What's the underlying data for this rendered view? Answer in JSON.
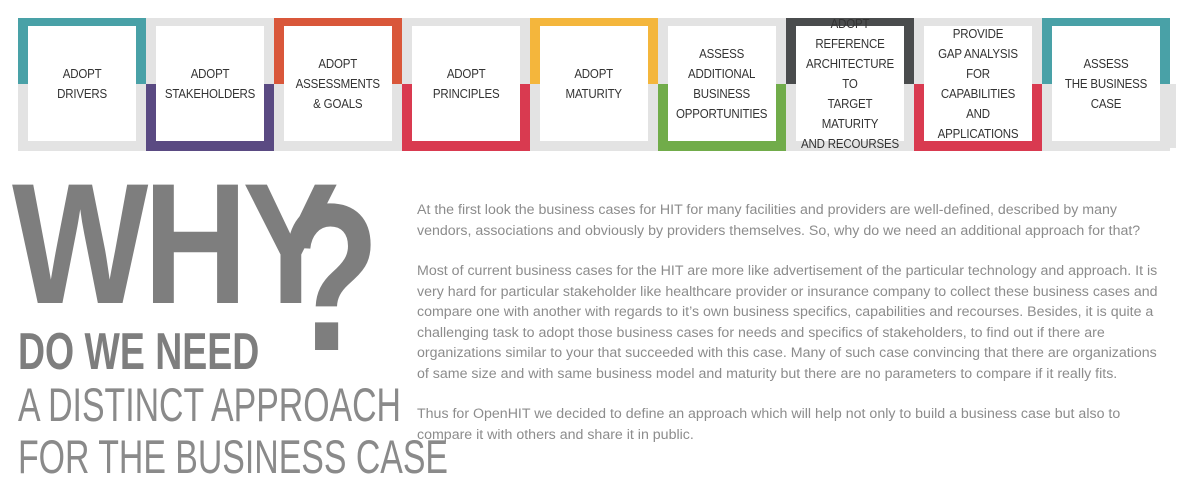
{
  "colors": {
    "teal": "#49a1a7",
    "purple": "#5a4a82",
    "orange": "#d9573a",
    "red": "#d93a50",
    "yellow": "#f4b63c",
    "green": "#71ac4a",
    "dark": "#4a4c4d",
    "grey": "#e3e3e3",
    "headline": "#7e7e7e",
    "body_text": "#8c8c8c"
  },
  "steps": [
    {
      "label": "ADOPT\nDRIVERS",
      "top_color": "#49a1a7",
      "bottom_color": "#e3e3e3"
    },
    {
      "label": "ADOPT\nSTAKEHOLDERS",
      "top_color": "#e3e3e3",
      "bottom_color": "#5a4a82"
    },
    {
      "label": "ADOPT\nASSESSMENTS\n& GOALS",
      "top_color": "#d9573a",
      "bottom_color": "#e3e3e3"
    },
    {
      "label": "ADOPT\nPRINCIPLES",
      "top_color": "#e3e3e3",
      "bottom_color": "#d93a50"
    },
    {
      "label": "ADOPT\nMATURITY",
      "top_color": "#f4b63c",
      "bottom_color": "#e3e3e3"
    },
    {
      "label": "ASSESS\nADDITIONAL\nBUSINESS\nOPPORTUNITIES",
      "top_color": "#e3e3e3",
      "bottom_color": "#71ac4a"
    },
    {
      "label": "ADOPT REFERENCE\nARCHITECTURE TO\nTARGET MATURITY\nAND RECOURSES",
      "top_color": "#4a4c4d",
      "bottom_color": "#e3e3e3"
    },
    {
      "label": "PROVIDE\nGAP ANALYSIS\nFOR CAPABILITIES\nAND APPLICATIONS",
      "top_color": "#e3e3e3",
      "bottom_color": "#d93a50"
    },
    {
      "label": "ASSESS\nTHE BUSINESS CASE",
      "top_color": "#49a1a7",
      "bottom_color": "#e3e3e3"
    }
  ],
  "headline": {
    "why": "WHY",
    "question_mark": "?",
    "need": "DO WE NEED",
    "line3": "A DISTINCT APPROACH",
    "line4": "FOR THE BUSINESS CASE"
  },
  "paragraphs": [
    "At the first look the business cases for HIT for many facilities and providers are well-defined, described by many vendors, associations and obviously by providers themselves. So, why do we need an additional approach for that?",
    "Most of current business cases for the HIT are more like advertisement of the particular technology and approach. It is very hard for particular stakeholder like healthcare provider or insurance company to collect these business cases and compare one with another with regards to it’s own business specifics, capabilities and recourses. Besides, it is quite a challenging task to adopt those business cases for needs and specifics of stakeholders, to find out if there are organizations similar to your that succeeded with this case. Many of such case convincing that there are organizations of same size and with same business model and maturity but there are no parameters to compare if it really fits.",
    "Thus for OpenHIT we decided to define an approach which will help not only to build a business case but also to compare it with others and share it in public."
  ]
}
